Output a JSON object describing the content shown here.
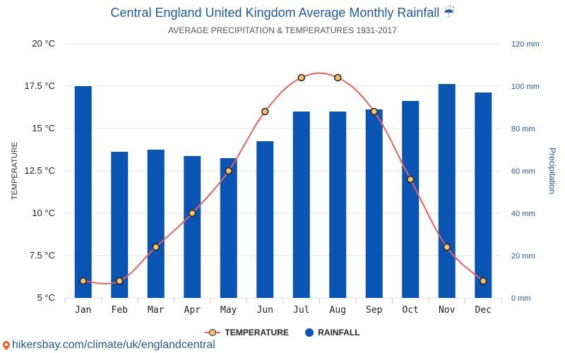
{
  "header": {
    "title": "Central England United Kingdom Average Monthly Rainfall ☔",
    "subtitle": "AVERAGE PRECIPITATION & TEMPERATURES 1931-2017"
  },
  "chart_data": {
    "type": "bar",
    "categories": [
      "Jan",
      "Feb",
      "Mar",
      "Apr",
      "May",
      "Jun",
      "Jul",
      "Aug",
      "Sep",
      "Oct",
      "Nov",
      "Dec"
    ],
    "series": [
      {
        "name": "RAINFALL",
        "type": "bar",
        "axis": "right",
        "unit": "mm",
        "values": [
          100,
          69,
          70,
          67,
          66,
          74,
          88,
          88,
          89,
          93,
          101,
          97
        ],
        "color": "#0a55b3"
      },
      {
        "name": "TEMPERATURE",
        "type": "line",
        "axis": "left",
        "unit": "°C",
        "values": [
          6,
          6,
          8,
          10,
          12.5,
          16,
          18,
          18,
          16,
          12,
          8,
          6
        ],
        "color": "#e8615d",
        "marker_color": "#f5c06a"
      }
    ],
    "left_axis": {
      "label": "TEMPERATURE",
      "range": [
        5,
        20
      ],
      "ticks": [
        "5 °C",
        "7.5 °C",
        "10 °C",
        "12.5 °C",
        "15 °C",
        "17.5 °C",
        "20 °C"
      ]
    },
    "right_axis": {
      "label": "Precipitation",
      "range": [
        0,
        120
      ],
      "ticks": [
        "0 mm",
        "20 mm",
        "40 mm",
        "60 mm",
        "80 mm",
        "100 mm",
        "120 mm"
      ]
    },
    "grid": true,
    "legend": "bottom-center"
  },
  "legend": {
    "temperature": "TEMPERATURE",
    "rainfall": "RAINFALL"
  },
  "footer": {
    "source": "hikersbay.com/climate/uk/englandcentral"
  }
}
